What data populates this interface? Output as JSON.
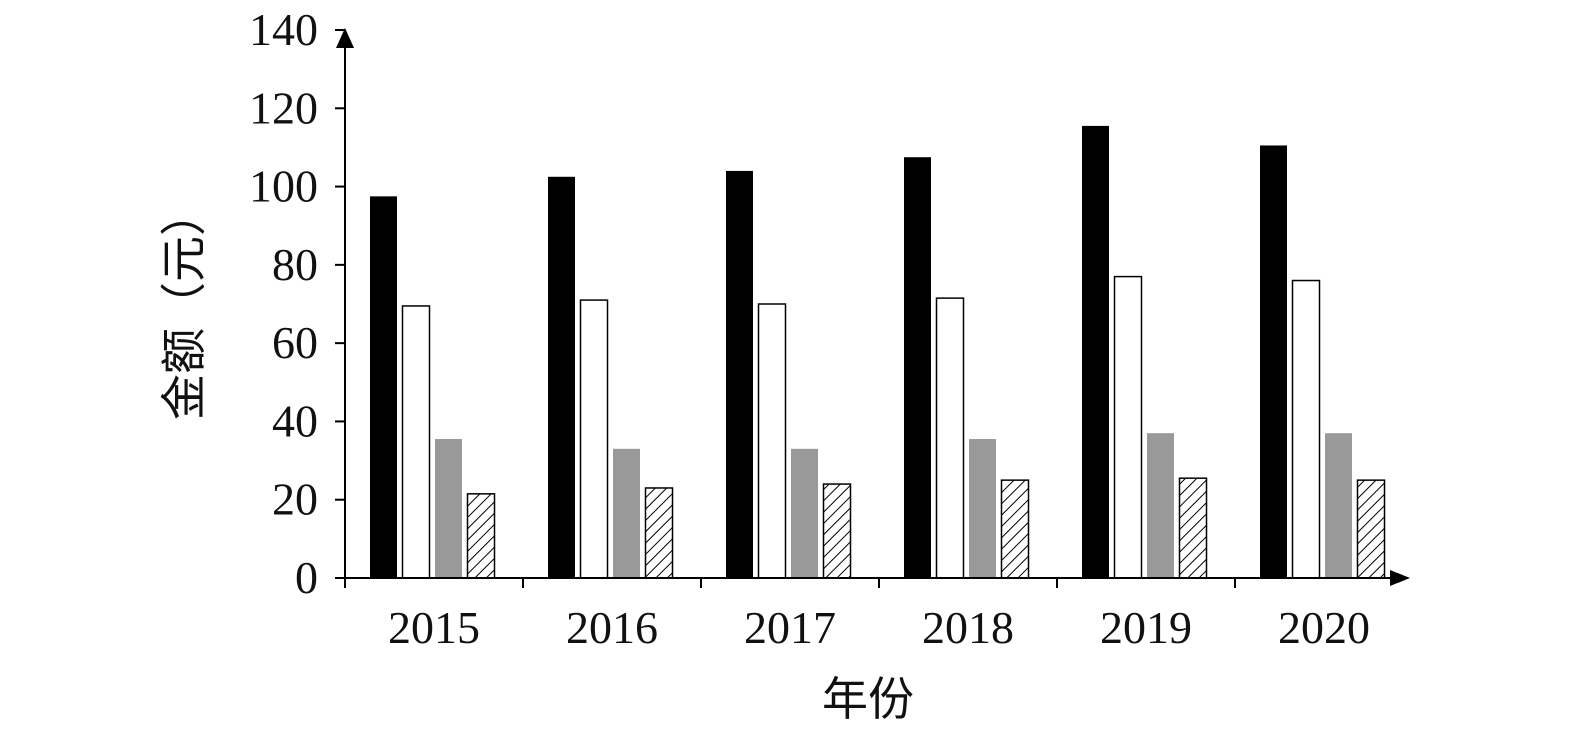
{
  "chart_data": {
    "type": "bar",
    "title": "",
    "xlabel": "年份",
    "ylabel": "金额（元）",
    "categories": [
      "2015",
      "2016",
      "2017",
      "2018",
      "2019",
      "2020"
    ],
    "ylim": [
      0,
      140
    ],
    "yticks": [
      0,
      20,
      40,
      60,
      80,
      100,
      120,
      140
    ],
    "grid": false,
    "legend": "none",
    "series": [
      {
        "values": [
          97.5,
          102.5,
          104,
          107.5,
          115.5,
          110.5
        ],
        "color": "#000000",
        "pattern": "solid"
      },
      {
        "values": [
          69.5,
          71,
          70,
          71.5,
          77,
          76
        ],
        "color": "#ffffff",
        "pattern": "outline"
      },
      {
        "values": [
          35.5,
          33,
          33,
          35.5,
          37,
          37
        ],
        "color": "#999999",
        "pattern": "solid"
      },
      {
        "values": [
          21.5,
          23,
          24,
          25,
          25.5,
          25
        ],
        "color": "#ffffff",
        "pattern": "hatch"
      }
    ]
  }
}
